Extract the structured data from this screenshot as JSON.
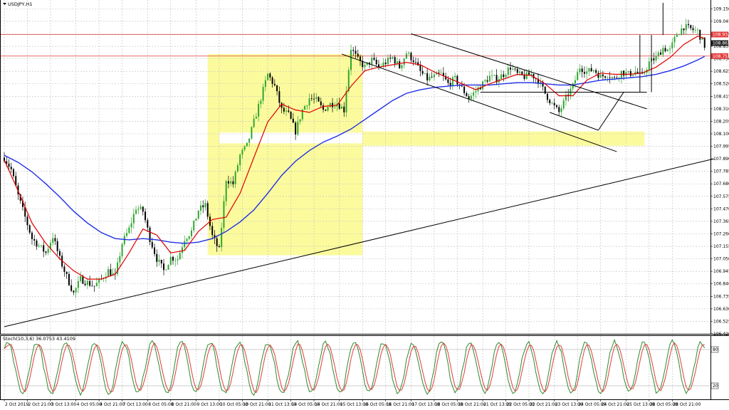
{
  "chart_data": {
    "type": "candlestick",
    "symbol_title": "USDJPY,H1",
    "grid": true,
    "main_panel": {
      "ylim": [
        106.42,
        109.2
      ],
      "y_ticks": [
        "109.150",
        "109.045",
        "108.940",
        "108.835",
        "108.730",
        "108.625",
        "108.520",
        "108.415",
        "108.310",
        "108.205",
        "108.100",
        "107.995",
        "107.890",
        "107.785",
        "107.680",
        "107.575",
        "107.470",
        "107.365",
        "107.260",
        "107.155",
        "107.050",
        "106.945",
        "106.840",
        "106.735",
        "106.630",
        "106.525",
        "106.420"
      ],
      "price_labels": [
        {
          "text": "108.934",
          "value": 108.934,
          "color": "#e23b3b"
        },
        {
          "text": "108.862",
          "value": 108.862,
          "color": "#222222"
        },
        {
          "text": "108.753",
          "value": 108.753,
          "color": "#e23b3b"
        }
      ],
      "horizontal_lines": [
        {
          "value": 108.934,
          "color": "#e23b3b"
        },
        {
          "value": 108.753,
          "color": "#e23b3b"
        }
      ],
      "close_path": [
        [
          0,
          107.9
        ],
        [
          3,
          107.8
        ],
        [
          6,
          107.58
        ],
        [
          9,
          107.4
        ],
        [
          12,
          107.22
        ],
        [
          15,
          107.16
        ],
        [
          18,
          107.1
        ],
        [
          21,
          107.24
        ],
        [
          24,
          107.05
        ],
        [
          27,
          106.9
        ],
        [
          30,
          106.76
        ],
        [
          33,
          106.88
        ],
        [
          36,
          106.85
        ],
        [
          39,
          106.82
        ],
        [
          42,
          106.88
        ],
        [
          45,
          106.95
        ],
        [
          48,
          106.9
        ],
        [
          51,
          107.18
        ],
        [
          54,
          107.3
        ],
        [
          57,
          107.48
        ],
        [
          60,
          107.45
        ],
        [
          63,
          107.22
        ],
        [
          66,
          107.05
        ],
        [
          69,
          106.95
        ],
        [
          72,
          107.06
        ],
        [
          75,
          107.05
        ],
        [
          78,
          107.22
        ],
        [
          81,
          107.28
        ],
        [
          84,
          107.46
        ],
        [
          87,
          107.5
        ],
        [
          90,
          107.24
        ],
        [
          93,
          107.12
        ],
        [
          96,
          107.72
        ],
        [
          99,
          107.68
        ],
        [
          102,
          107.92
        ],
        [
          105,
          108.0
        ],
        [
          108,
          108.2
        ],
        [
          111,
          108.4
        ],
        [
          114,
          108.6
        ],
        [
          117,
          108.5
        ],
        [
          120,
          108.3
        ],
        [
          123,
          108.26
        ],
        [
          126,
          108.12
        ],
        [
          129,
          108.3
        ],
        [
          132,
          108.4
        ],
        [
          135,
          108.38
        ],
        [
          138,
          108.3
        ],
        [
          141,
          108.35
        ],
        [
          144,
          108.36
        ],
        [
          147,
          108.3
        ],
        [
          150,
          108.82
        ],
        [
          153,
          108.72
        ],
        [
          156,
          108.66
        ],
        [
          159,
          108.72
        ],
        [
          162,
          108.66
        ],
        [
          165,
          108.7
        ],
        [
          168,
          108.74
        ],
        [
          171,
          108.66
        ],
        [
          174,
          108.78
        ],
        [
          177,
          108.72
        ],
        [
          180,
          108.62
        ],
        [
          183,
          108.56
        ],
        [
          186,
          108.58
        ],
        [
          189,
          108.6
        ],
        [
          192,
          108.52
        ],
        [
          195,
          108.56
        ],
        [
          198,
          108.48
        ],
        [
          201,
          108.4
        ],
        [
          204,
          108.46
        ],
        [
          207,
          108.52
        ],
        [
          210,
          108.58
        ],
        [
          213,
          108.56
        ],
        [
          216,
          108.6
        ],
        [
          219,
          108.66
        ],
        [
          222,
          108.6
        ],
        [
          225,
          108.58
        ],
        [
          228,
          108.6
        ],
        [
          231,
          108.55
        ],
        [
          234,
          108.44
        ],
        [
          237,
          108.35
        ],
        [
          240,
          108.28
        ],
        [
          243,
          108.4
        ],
        [
          246,
          108.5
        ],
        [
          249,
          108.66
        ],
        [
          252,
          108.62
        ],
        [
          255,
          108.64
        ],
        [
          258,
          108.58
        ],
        [
          261,
          108.6
        ],
        [
          264,
          108.56
        ],
        [
          267,
          108.62
        ],
        [
          270,
          108.6
        ],
        [
          273,
          108.62
        ],
        [
          276,
          108.58
        ],
        [
          279,
          108.7
        ],
        [
          282,
          108.74
        ],
        [
          285,
          108.82
        ],
        [
          288,
          108.8
        ],
        [
          291,
          108.94
        ],
        [
          294,
          109.0
        ],
        [
          297,
          108.98
        ],
        [
          300,
          108.96
        ],
        [
          303,
          108.84
        ]
      ],
      "ma_fast": [
        [
          0,
          107.88
        ],
        [
          6,
          107.62
        ],
        [
          12,
          107.35
        ],
        [
          18,
          107.18
        ],
        [
          24,
          107.05
        ],
        [
          30,
          106.95
        ],
        [
          36,
          106.88
        ],
        [
          42,
          106.88
        ],
        [
          48,
          106.92
        ],
        [
          54,
          107.1
        ],
        [
          60,
          107.3
        ],
        [
          66,
          107.25
        ],
        [
          72,
          107.1
        ],
        [
          78,
          107.12
        ],
        [
          84,
          107.28
        ],
        [
          90,
          107.38
        ],
        [
          96,
          107.4
        ],
        [
          102,
          107.6
        ],
        [
          108,
          107.9
        ],
        [
          114,
          108.2
        ],
        [
          120,
          108.35
        ],
        [
          126,
          108.3
        ],
        [
          132,
          108.28
        ],
        [
          138,
          108.33
        ],
        [
          144,
          108.34
        ],
        [
          150,
          108.5
        ],
        [
          156,
          108.63
        ],
        [
          162,
          108.66
        ],
        [
          168,
          108.68
        ],
        [
          174,
          108.7
        ],
        [
          180,
          108.68
        ],
        [
          186,
          108.62
        ],
        [
          192,
          108.57
        ],
        [
          198,
          108.52
        ],
        [
          204,
          108.47
        ],
        [
          210,
          108.52
        ],
        [
          216,
          108.56
        ],
        [
          222,
          108.6
        ],
        [
          228,
          108.59
        ],
        [
          234,
          108.52
        ],
        [
          240,
          108.42
        ],
        [
          246,
          108.42
        ],
        [
          252,
          108.55
        ],
        [
          258,
          108.61
        ],
        [
          264,
          108.6
        ],
        [
          270,
          108.6
        ],
        [
          276,
          108.61
        ],
        [
          282,
          108.66
        ],
        [
          288,
          108.74
        ],
        [
          294,
          108.85
        ],
        [
          300,
          108.92
        ],
        [
          303,
          108.9
        ]
      ],
      "ma_slow": [
        [
          0,
          107.92
        ],
        [
          6,
          107.86
        ],
        [
          12,
          107.78
        ],
        [
          18,
          107.68
        ],
        [
          24,
          107.57
        ],
        [
          30,
          107.45
        ],
        [
          36,
          107.35
        ],
        [
          42,
          107.27
        ],
        [
          48,
          107.22
        ],
        [
          54,
          107.21
        ],
        [
          60,
          107.22
        ],
        [
          66,
          107.21
        ],
        [
          72,
          107.19
        ],
        [
          78,
          107.18
        ],
        [
          84,
          107.19
        ],
        [
          90,
          107.22
        ],
        [
          96,
          107.28
        ],
        [
          102,
          107.36
        ],
        [
          108,
          107.46
        ],
        [
          114,
          107.6
        ],
        [
          120,
          107.75
        ],
        [
          126,
          107.87
        ],
        [
          132,
          107.96
        ],
        [
          138,
          108.03
        ],
        [
          144,
          108.08
        ],
        [
          150,
          108.14
        ],
        [
          156,
          108.22
        ],
        [
          162,
          108.3
        ],
        [
          168,
          108.38
        ],
        [
          174,
          108.44
        ],
        [
          180,
          108.47
        ],
        [
          186,
          108.49
        ],
        [
          192,
          108.5
        ],
        [
          198,
          108.51
        ],
        [
          204,
          108.51
        ],
        [
          210,
          108.51
        ],
        [
          216,
          108.52
        ],
        [
          222,
          108.53
        ],
        [
          228,
          108.53
        ],
        [
          234,
          108.52
        ],
        [
          240,
          108.51
        ],
        [
          246,
          108.51
        ],
        [
          252,
          108.53
        ],
        [
          258,
          108.55
        ],
        [
          264,
          108.56
        ],
        [
          270,
          108.57
        ],
        [
          276,
          108.58
        ],
        [
          282,
          108.6
        ],
        [
          288,
          108.63
        ],
        [
          294,
          108.67
        ],
        [
          300,
          108.72
        ],
        [
          303,
          108.75
        ]
      ],
      "trend_lines": [
        {
          "from": [
            0,
            106.48
          ],
          "to": [
            307,
            107.89
          ]
        },
        {
          "from": [
            176,
            108.94
          ],
          "to": [
            278,
            108.31
          ]
        },
        {
          "from": [
            146,
            108.77
          ],
          "to": [
            265,
            107.95
          ]
        },
        {
          "from": [
            206,
            108.45
          ],
          "to": [
            278,
            108.45
          ]
        },
        {
          "from": [
            236,
            108.28
          ],
          "to": [
            257,
            108.13
          ]
        },
        {
          "from": [
            257,
            108.13
          ],
          "to": [
            268,
            108.45
          ]
        },
        {
          "from": [
            275,
            108.45
          ],
          "to": [
            275,
            108.93
          ]
        },
        {
          "from": [
            280,
            108.45
          ],
          "to": [
            280,
            108.93
          ]
        },
        {
          "from": [
            285,
            108.93
          ],
          "to": [
            285,
            109.2
          ]
        }
      ],
      "zones": [
        {
          "x": [
            88,
            155
          ],
          "y": [
            107.08,
            108.77
          ],
          "color": "#fbfb9e"
        },
        {
          "x": [
            155,
            277
          ],
          "y": [
            108.0,
            108.12
          ],
          "color": "#fbfb9e"
        }
      ],
      "zone_gap": {
        "x": [
          93,
          155
        ],
        "y": [
          108.02,
          108.11
        ]
      }
    },
    "oscillator_panel": {
      "label": "Stoch(10,3,6) 36.0753 43.4109",
      "ylim": [
        0,
        100
      ],
      "levels": [
        80,
        20
      ],
      "level_labels": [
        "80",
        "20"
      ],
      "main_color": "#2e8b2e",
      "signal_color": "#e23b3b"
    },
    "x_ticks": [
      {
        "i": 0,
        "label": "2 Oct 2019"
      },
      {
        "i": 10,
        "label": "2 Oct 21:00"
      },
      {
        "i": 20,
        "label": "3 Oct 13:00"
      },
      {
        "i": 31,
        "label": "4 Oct 05:00"
      },
      {
        "i": 41,
        "label": "4 Oct 21:00"
      },
      {
        "i": 51,
        "label": "7 Oct 13:00"
      },
      {
        "i": 62,
        "label": "8 Oct 05:00"
      },
      {
        "i": 72,
        "label": "8 Oct 21:00"
      },
      {
        "i": 83,
        "label": "9 Oct 13:00"
      },
      {
        "i": 93,
        "label": "10 Oct 05:00"
      },
      {
        "i": 103,
        "label": "10 Oct 21:00"
      },
      {
        "i": 114,
        "label": "11 Oct 13:00"
      },
      {
        "i": 124,
        "label": "14 Oct 05:00"
      },
      {
        "i": 134,
        "label": "14 Oct 21:00"
      },
      {
        "i": 145,
        "label": "15 Oct 13:00"
      },
      {
        "i": 155,
        "label": "16 Oct 05:00"
      },
      {
        "i": 165,
        "label": "16 Oct 21:00"
      },
      {
        "i": 176,
        "label": "17 Oct 13:00"
      },
      {
        "i": 186,
        "label": "18 Oct 05:00"
      },
      {
        "i": 196,
        "label": "18 Oct 21:00"
      },
      {
        "i": 207,
        "label": "21 Oct 13:00"
      },
      {
        "i": 217,
        "label": "22 Oct 05:00"
      },
      {
        "i": 227,
        "label": "22 Oct 21:00"
      },
      {
        "i": 238,
        "label": "23 Oct 13:00"
      },
      {
        "i": 248,
        "label": "24 Oct 05:00"
      },
      {
        "i": 258,
        "label": "24 Oct 21:00"
      },
      {
        "i": 269,
        "label": "25 Oct 13:00"
      },
      {
        "i": 279,
        "label": "28 Oct 05:00"
      },
      {
        "i": 289,
        "label": "28 Oct 21:00"
      }
    ],
    "bar_count": 304,
    "colors": {
      "bull": "#2fa52f",
      "bear": "#000000",
      "ma_fast": "#e00000",
      "ma_slow": "#1f2fe6",
      "grid": "#bdbdbd",
      "zone": "#fbfb9e"
    }
  }
}
